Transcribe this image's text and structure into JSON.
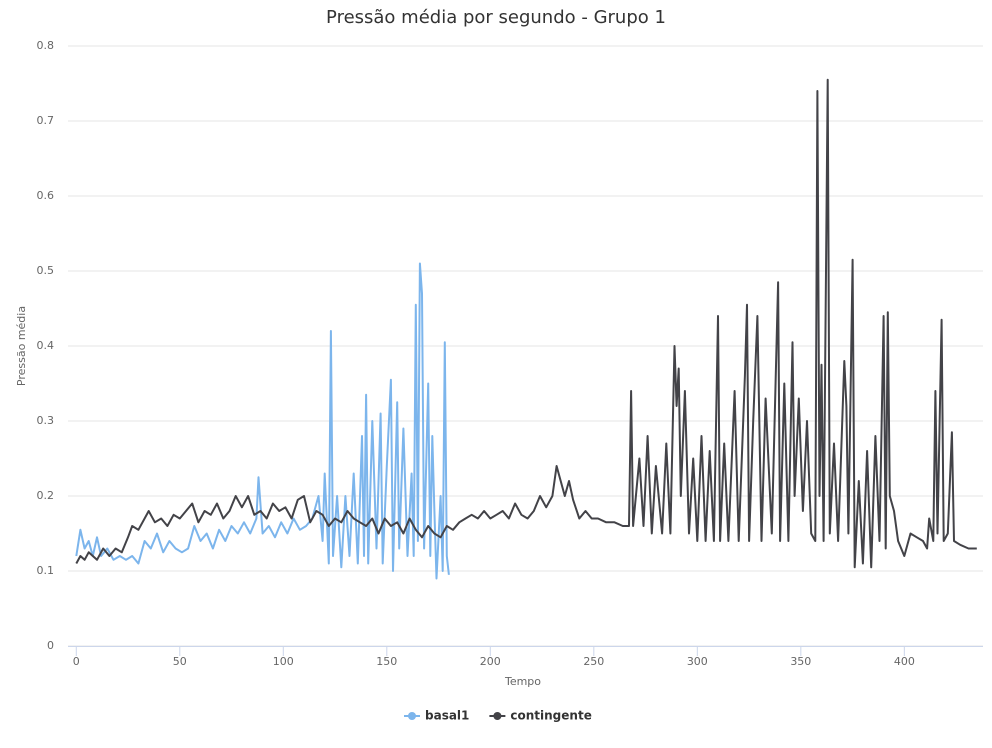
{
  "chart_data": {
    "type": "line",
    "title": "Pressão média por segundo - Grupo 1",
    "x_label": "Tempo",
    "y_label": "Pressão média",
    "xlim": [
      -4,
      438
    ],
    "xticks": [
      0,
      50,
      100,
      150,
      200,
      250,
      300,
      350,
      400
    ],
    "ylim": [
      0,
      0.8
    ],
    "yticks": [
      0,
      0.1,
      0.2,
      0.3,
      0.4,
      0.5,
      0.6,
      0.7,
      0.8
    ],
    "grid": true,
    "legend": "bottom",
    "series": [
      {
        "name": "basal1",
        "color": "#7cb5ec",
        "x": [
          0,
          2,
          4,
          6,
          8,
          10,
          12,
          15,
          18,
          21,
          24,
          27,
          30,
          33,
          36,
          39,
          42,
          45,
          48,
          51,
          54,
          57,
          60,
          63,
          66,
          69,
          72,
          75,
          78,
          81,
          84,
          87,
          88,
          90,
          93,
          96,
          99,
          102,
          105,
          108,
          111,
          114,
          117,
          119,
          120,
          122,
          123,
          124,
          126,
          128,
          130,
          132,
          134,
          136,
          138,
          139,
          140,
          141,
          143,
          145,
          147,
          148,
          150,
          152,
          153,
          155,
          156,
          158,
          160,
          162,
          163,
          164,
          165,
          166,
          167,
          168,
          170,
          171,
          172,
          173,
          174,
          176,
          177,
          178,
          179,
          180
        ],
        "values": [
          0.12,
          0.155,
          0.13,
          0.14,
          0.12,
          0.145,
          0.12,
          0.13,
          0.115,
          0.12,
          0.115,
          0.12,
          0.11,
          0.14,
          0.13,
          0.15,
          0.125,
          0.14,
          0.13,
          0.125,
          0.13,
          0.16,
          0.14,
          0.15,
          0.13,
          0.155,
          0.14,
          0.16,
          0.15,
          0.165,
          0.15,
          0.17,
          0.225,
          0.15,
          0.16,
          0.145,
          0.165,
          0.15,
          0.17,
          0.155,
          0.16,
          0.17,
          0.2,
          0.14,
          0.23,
          0.11,
          0.42,
          0.12,
          0.2,
          0.105,
          0.2,
          0.12,
          0.23,
          0.11,
          0.28,
          0.12,
          0.335,
          0.11,
          0.3,
          0.13,
          0.31,
          0.11,
          0.24,
          0.355,
          0.1,
          0.325,
          0.13,
          0.29,
          0.12,
          0.23,
          0.12,
          0.455,
          0.14,
          0.51,
          0.47,
          0.13,
          0.35,
          0.12,
          0.28,
          0.18,
          0.09,
          0.2,
          0.1,
          0.405,
          0.12,
          0.095
        ]
      },
      {
        "name": "contingente",
        "color": "#434348",
        "x": [
          0,
          2,
          4,
          6,
          8,
          10,
          13,
          16,
          19,
          22,
          25,
          27,
          30,
          33,
          35,
          38,
          41,
          44,
          47,
          50,
          53,
          56,
          59,
          62,
          65,
          68,
          71,
          74,
          77,
          80,
          83,
          86,
          89,
          92,
          95,
          98,
          101,
          104,
          107,
          110,
          113,
          116,
          119,
          122,
          125,
          128,
          131,
          134,
          137,
          140,
          143,
          146,
          149,
          152,
          155,
          158,
          161,
          164,
          167,
          170,
          173,
          176,
          179,
          182,
          185,
          188,
          191,
          194,
          197,
          200,
          203,
          206,
          209,
          212,
          215,
          218,
          221,
          224,
          227,
          230,
          232,
          234,
          236,
          238,
          240,
          243,
          246,
          249,
          252,
          256,
          260,
          264,
          267,
          268,
          269,
          272,
          274,
          276,
          278,
          280,
          283,
          285,
          287,
          289,
          290,
          291,
          292,
          294,
          296,
          298,
          300,
          302,
          304,
          306,
          308,
          310,
          311,
          313,
          315,
          318,
          320,
          323,
          324,
          325,
          327,
          329,
          331,
          333,
          336,
          339,
          340,
          342,
          344,
          346,
          347,
          349,
          351,
          353,
          355,
          357,
          358,
          359,
          360,
          361,
          363,
          364,
          366,
          368,
          369,
          371,
          372,
          373,
          375,
          376,
          378,
          380,
          382,
          384,
          386,
          388,
          390,
          391,
          392,
          393,
          395,
          397,
          400,
          403,
          406,
          409,
          411,
          412,
          414,
          415,
          416,
          418,
          419,
          421,
          423,
          424,
          427,
          431,
          435
        ],
        "values": [
          0.11,
          0.12,
          0.115,
          0.125,
          0.12,
          0.115,
          0.13,
          0.12,
          0.13,
          0.125,
          0.145,
          0.16,
          0.155,
          0.17,
          0.18,
          0.165,
          0.17,
          0.16,
          0.175,
          0.17,
          0.18,
          0.19,
          0.165,
          0.18,
          0.175,
          0.19,
          0.17,
          0.18,
          0.2,
          0.185,
          0.2,
          0.175,
          0.18,
          0.17,
          0.19,
          0.18,
          0.185,
          0.17,
          0.195,
          0.2,
          0.165,
          0.18,
          0.175,
          0.16,
          0.17,
          0.165,
          0.18,
          0.17,
          0.165,
          0.16,
          0.17,
          0.15,
          0.17,
          0.16,
          0.165,
          0.15,
          0.17,
          0.155,
          0.145,
          0.16,
          0.15,
          0.145,
          0.16,
          0.155,
          0.165,
          0.17,
          0.175,
          0.17,
          0.18,
          0.17,
          0.175,
          0.18,
          0.17,
          0.19,
          0.175,
          0.17,
          0.18,
          0.2,
          0.185,
          0.2,
          0.24,
          0.22,
          0.2,
          0.22,
          0.195,
          0.17,
          0.18,
          0.17,
          0.17,
          0.165,
          0.165,
          0.16,
          0.16,
          0.34,
          0.16,
          0.25,
          0.16,
          0.28,
          0.15,
          0.24,
          0.15,
          0.27,
          0.15,
          0.4,
          0.32,
          0.37,
          0.2,
          0.34,
          0.15,
          0.25,
          0.14,
          0.28,
          0.14,
          0.26,
          0.14,
          0.44,
          0.14,
          0.27,
          0.14,
          0.34,
          0.14,
          0.36,
          0.455,
          0.14,
          0.3,
          0.44,
          0.14,
          0.33,
          0.15,
          0.485,
          0.14,
          0.35,
          0.14,
          0.405,
          0.2,
          0.33,
          0.18,
          0.3,
          0.15,
          0.14,
          0.74,
          0.2,
          0.375,
          0.14,
          0.755,
          0.15,
          0.27,
          0.14,
          0.22,
          0.38,
          0.32,
          0.15,
          0.515,
          0.105,
          0.22,
          0.11,
          0.26,
          0.105,
          0.28,
          0.14,
          0.44,
          0.13,
          0.445,
          0.2,
          0.18,
          0.14,
          0.12,
          0.15,
          0.145,
          0.14,
          0.13,
          0.17,
          0.14,
          0.34,
          0.15,
          0.435,
          0.14,
          0.15,
          0.285,
          0.14,
          0.135,
          0.13,
          0.13
        ]
      }
    ]
  }
}
